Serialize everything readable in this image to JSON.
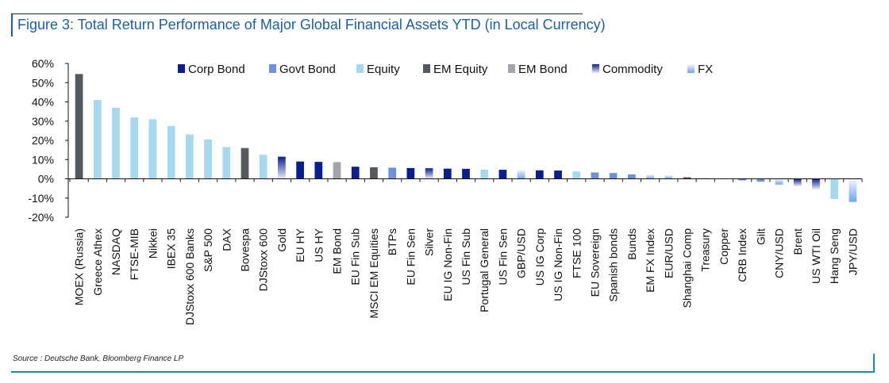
{
  "header": {
    "title": "Figure 3: Total Return Performance of Major Global Financial Assets YTD (in Local Currency)"
  },
  "footer": {
    "source": "Source : Deutsche Bank, Bloomberg Finance LP"
  },
  "colors": {
    "corp_bond": "#0a1f8f",
    "govt_bond": "#6f8fe0",
    "equity": "#a6d8f2",
    "em_equity": "#555a62",
    "em_bond": "#a3a5aa",
    "commodity": "#0a1f8f",
    "fx": "#6fa6ea",
    "axis": "#111111"
  },
  "chart_data": {
    "type": "bar",
    "title": "Figure 3: Total Return Performance of Major Global Financial Assets YTD (in Local Currency)",
    "ylim": [
      -20,
      60
    ],
    "yticks": [
      -20,
      -10,
      0,
      10,
      20,
      30,
      40,
      50,
      60
    ],
    "ytick_labels": [
      "-20%",
      "-10%",
      "0%",
      "10%",
      "20%",
      "30%",
      "40%",
      "50%",
      "60%"
    ],
    "legend_position": "top",
    "legend": [
      {
        "key": "corp_bond",
        "label": "Corp Bond"
      },
      {
        "key": "govt_bond",
        "label": "Govt Bond"
      },
      {
        "key": "equity",
        "label": "Equity"
      },
      {
        "key": "em_equity",
        "label": "EM Equity"
      },
      {
        "key": "em_bond",
        "label": "EM Bond"
      },
      {
        "key": "commodity",
        "label": "Commodity"
      },
      {
        "key": "fx",
        "label": "FX"
      }
    ],
    "categories": [
      "MOEX (Russia)",
      "Greece Athex",
      "NASDAQ",
      "FTSE-MIB",
      "Nikkei",
      "IBEX 35",
      "DJStoxx 600 Banks",
      "S&P 500",
      "DAX",
      "Bovespa",
      "DJStoxx 600",
      "Gold",
      "EU HY",
      "US HY",
      "EM Bond",
      "EU Fin Sub",
      "MSCI EM Equities",
      "BTPs",
      "EU Fin Sen",
      "Silver",
      "EU IG Non-Fin",
      "US Fin Sub",
      "Portugal General",
      "US Fin Sen",
      "GBP/USD",
      "US IG Corp",
      "US IG Non-Fin",
      "FTSE 100",
      "EU Sovereign",
      "Spanish bonds",
      "Bunds",
      "EM FX Index",
      "EUR/USD",
      "Shanghai Comp",
      "Treasury",
      "Copper",
      "CRB Index",
      "Gilt",
      "CNY/USD",
      "Brent",
      "US WTI Oil",
      "Hang Seng",
      "JPY/USD"
    ],
    "values": [
      54.5,
      41,
      37,
      32,
      31,
      27.5,
      23,
      20.5,
      16.5,
      16,
      12.5,
      11.5,
      9,
      8.8,
      8.7,
      6.3,
      6,
      5.8,
      5.6,
      5.5,
      5.3,
      5.2,
      4.8,
      4.7,
      4.6,
      4.4,
      4.3,
      3.8,
      3.3,
      3.0,
      2.3,
      2.2,
      1.8,
      0.8,
      0.3,
      0.2,
      -1.0,
      -1.5,
      -3.0,
      -3.8,
      -5.5,
      -10.5,
      -12.0
    ],
    "asset_classes": [
      "em_equity",
      "equity",
      "equity",
      "equity",
      "equity",
      "equity",
      "equity",
      "equity",
      "equity",
      "em_equity",
      "equity",
      "commodity",
      "corp_bond",
      "corp_bond",
      "em_bond",
      "corp_bond",
      "em_equity",
      "govt_bond",
      "corp_bond",
      "commodity",
      "corp_bond",
      "corp_bond",
      "equity",
      "corp_bond",
      "fx",
      "corp_bond",
      "corp_bond",
      "equity",
      "govt_bond",
      "govt_bond",
      "govt_bond",
      "fx",
      "fx",
      "em_equity",
      "govt_bond",
      "commodity",
      "commodity",
      "govt_bond",
      "fx",
      "commodity",
      "commodity",
      "equity",
      "fx"
    ]
  }
}
